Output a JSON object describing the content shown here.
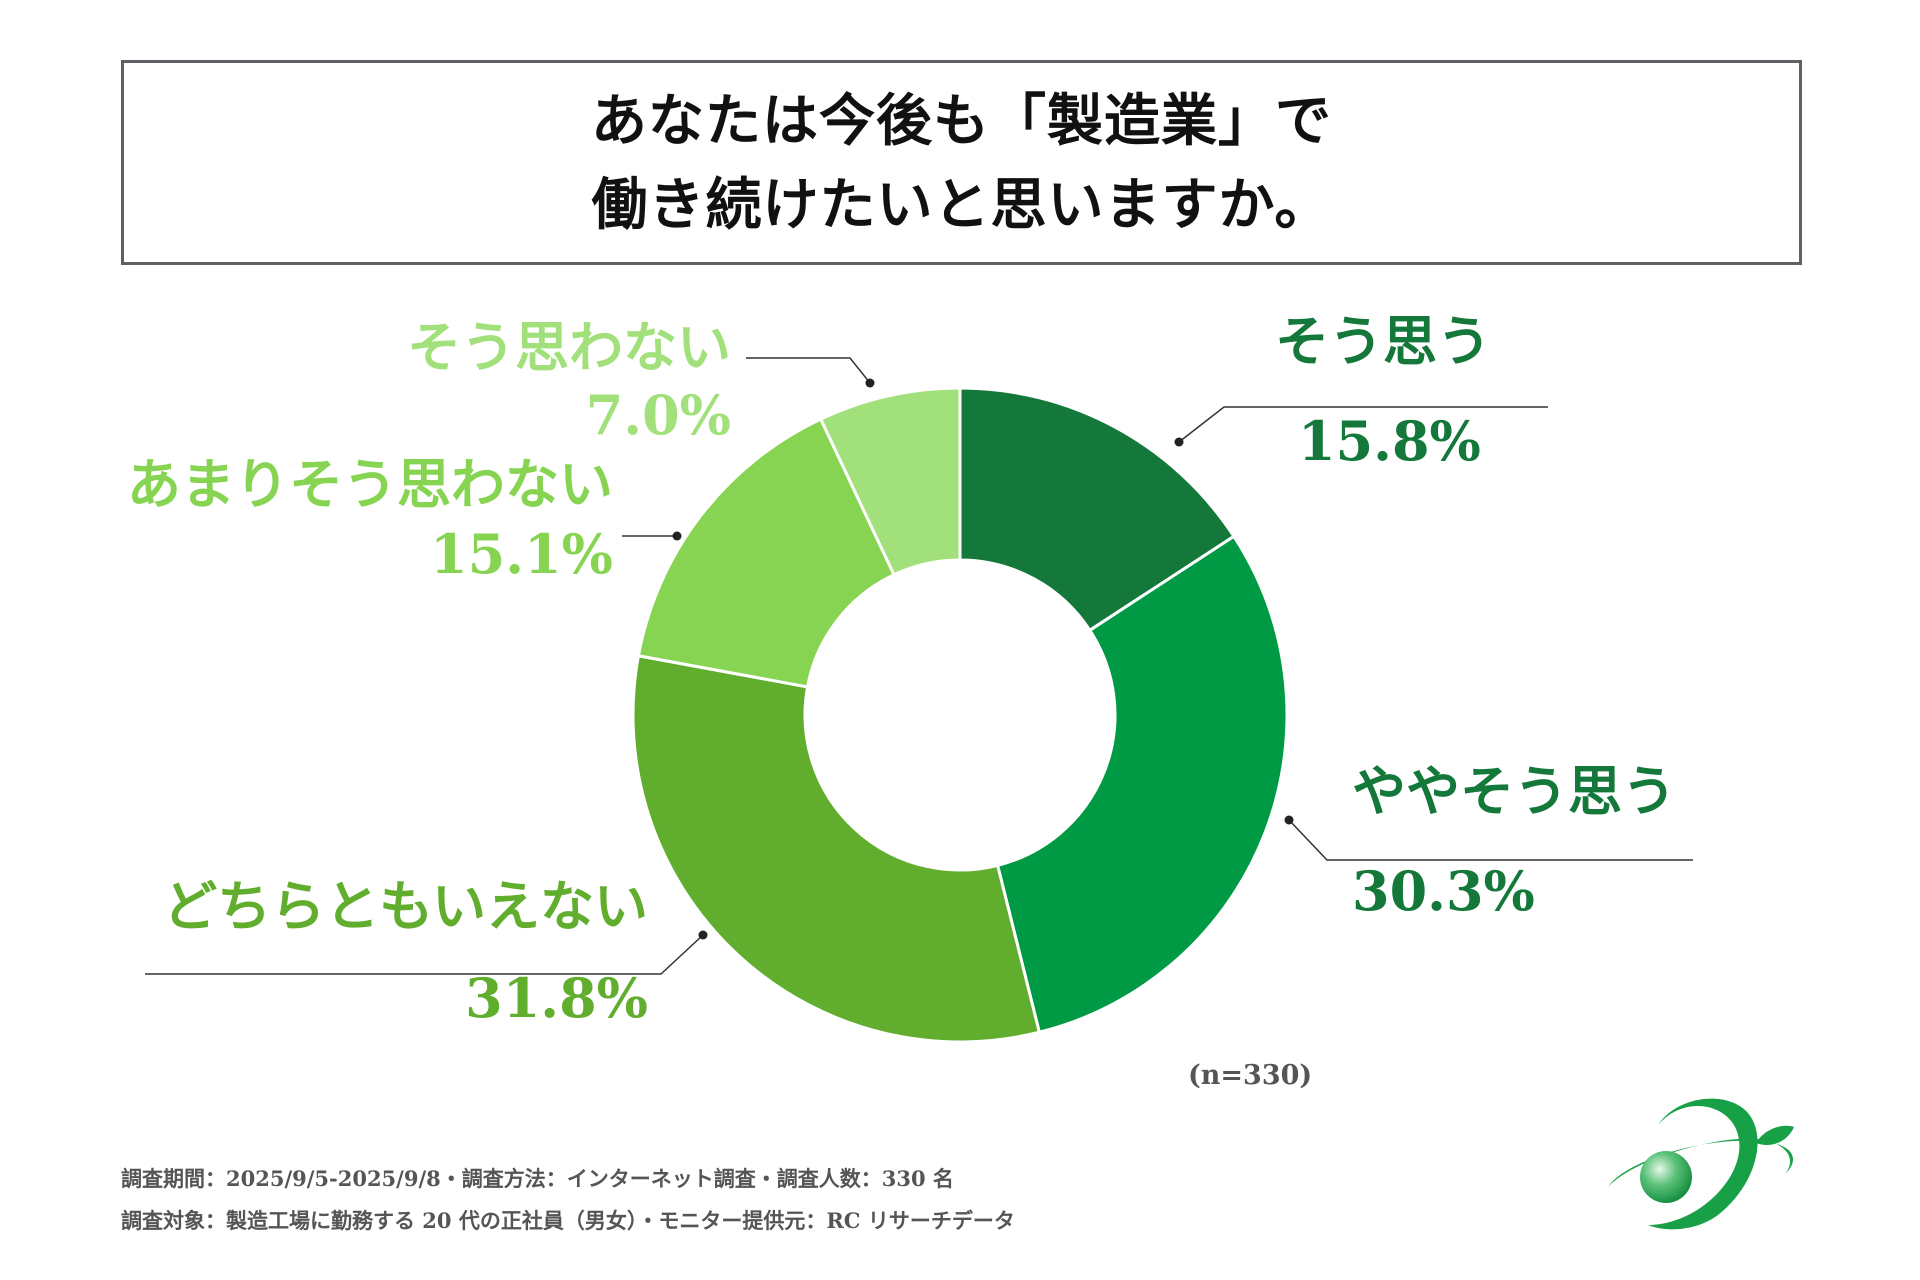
{
  "title": {
    "line1": "あなたは今後も「製造業」で",
    "line2": "働き続けたいと思いますか。"
  },
  "chart_data": {
    "type": "pie",
    "variant": "donut",
    "sample_note": "(n=330)",
    "categories": [
      "そう思う",
      "ややそう思う",
      "どちらともいえない",
      "あまりそう思わない",
      "そう思わない"
    ],
    "values": [
      15.8,
      30.3,
      31.8,
      15.1,
      7.0
    ],
    "value_labels": [
      "15.8%",
      "30.3%",
      "31.8%",
      "15.1%",
      "7.0%"
    ],
    "colors": [
      "#13783a",
      "#009a44",
      "#61ad2e",
      "#87d452",
      "#a1e07a"
    ],
    "label_colors": [
      "#13783a",
      "#13783a",
      "#61ad2e",
      "#87d452",
      "#a1e07a"
    ],
    "start_angle_deg": 0,
    "direction": "clockwise"
  },
  "footer": {
    "line1": "調査期間：2025/9/5-2025/9/8・調査方法：インターネット調査・調査人数：330 名",
    "line2": "調査対象：製造工場に勤務する 20 代の正社員（男女）・モニター提供元：RC リサーチデータ"
  },
  "logo": {
    "icon": "orbit-globe-leaf-icon",
    "color": "#17a046"
  }
}
